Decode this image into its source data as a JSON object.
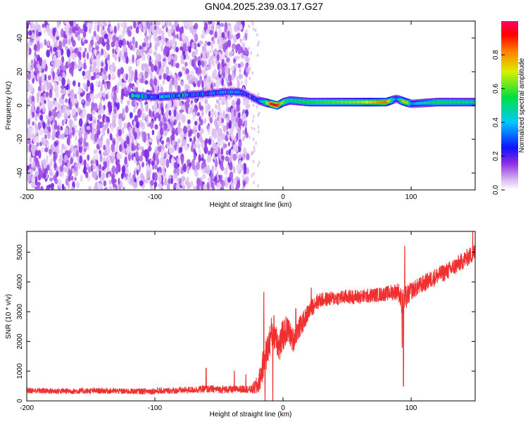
{
  "figure": {
    "title": "GN04.2025.239.03.17.G27"
  },
  "chart_data": [
    {
      "type": "heatmap",
      "title": "",
      "xlabel": "Height of straight line (km)",
      "ylabel": "Frequency (Hz)",
      "xlim": [
        -200,
        150
      ],
      "ylim": [
        -50,
        50
      ],
      "xticks": [
        -200,
        -100,
        0,
        100
      ],
      "yticks": [
        -40,
        -20,
        0,
        20,
        40
      ],
      "xtick_labels": [
        "-200",
        "-100",
        "0",
        "100"
      ],
      "ytick_labels": [
        "-40",
        "-20",
        "0",
        "20",
        "40"
      ],
      "colorbar": {
        "label": "Normalized spectral amplitude",
        "range": [
          0,
          1
        ],
        "ticks": [
          0.0,
          0.2,
          0.4,
          0.6,
          0.8
        ],
        "tick_labels": [
          "0.0",
          "0.2",
          "0.4",
          "0.6",
          "0.8"
        ],
        "colormap": [
          "#ffffff",
          "#d9b8f0",
          "#7a2be0",
          "#1010ff",
          "#00d0ff",
          "#00e040",
          "#f0f000",
          "#ff8000",
          "#ff0000"
        ]
      },
      "noise_region": {
        "x_start": -200,
        "x_end": -27,
        "sparse_until": -18
      },
      "line_band": {
        "x": [
          -120,
          -100,
          -80,
          -60,
          -45,
          -35,
          -30,
          -25,
          -20,
          -15,
          -10,
          -5,
          0,
          5,
          20,
          40,
          60,
          80,
          88,
          95,
          100,
          120,
          150
        ],
        "freq": [
          6,
          5,
          6,
          7,
          8,
          8,
          7,
          5,
          3,
          2,
          1,
          0,
          2,
          3,
          2,
          2,
          2,
          2,
          4,
          2,
          1,
          2,
          2
        ],
        "amplitude": [
          0.45,
          0.35,
          0.45,
          0.3,
          0.35,
          0.3,
          0.2,
          0.2,
          0.3,
          0.5,
          0.9,
          0.95,
          0.6,
          0.5,
          0.55,
          0.6,
          0.65,
          0.85,
          0.3,
          0.8,
          0.35,
          0.55,
          0.5
        ]
      }
    },
    {
      "type": "line",
      "title": "",
      "xlabel": "Height of straight line (km)",
      "ylabel": "SNR (10 * v/v)",
      "xlim": [
        -200,
        150
      ],
      "ylim": [
        0,
        5700
      ],
      "xticks": [
        -200,
        -100,
        0,
        100
      ],
      "yticks": [
        0,
        1000,
        2000,
        3000,
        4000,
        5000
      ],
      "xtick_labels": [
        "-200",
        "-100",
        "0",
        "100"
      ],
      "ytick_labels": [
        "0",
        "1000",
        "2000",
        "3000",
        "4000",
        "5000"
      ],
      "color": "#f03030",
      "series": [
        {
          "name": "SNR",
          "x": [
            -200,
            -180,
            -160,
            -140,
            -120,
            -100,
            -80,
            -60,
            -40,
            -30,
            -25,
            -20,
            -17,
            -15,
            -12,
            -10,
            -8,
            -5,
            -3,
            0,
            3,
            5,
            8,
            10,
            15,
            20,
            25,
            30,
            40,
            50,
            60,
            70,
            80,
            90,
            93,
            95,
            100,
            110,
            120,
            130,
            140,
            150
          ],
          "y": [
            350,
            330,
            330,
            340,
            320,
            330,
            350,
            400,
            380,
            400,
            380,
            500,
            900,
            1300,
            1700,
            2100,
            2400,
            2200,
            1800,
            2200,
            2400,
            2300,
            2000,
            2300,
            2600,
            3000,
            3300,
            3400,
            3450,
            3500,
            3500,
            3550,
            3600,
            3700,
            3300,
            3400,
            3700,
            3950,
            4200,
            4400,
            4700,
            5000
          ],
          "noise": [
            100,
            100,
            100,
            100,
            100,
            110,
            110,
            130,
            130,
            130,
            130,
            350,
            450,
            550,
            600,
            600,
            600,
            600,
            600,
            550,
            500,
            450,
            400,
            400,
            350,
            300,
            300,
            250,
            250,
            250,
            250,
            250,
            250,
            300,
            450,
            450,
            300,
            300,
            300,
            300,
            300,
            300
          ],
          "spikes": [
            {
              "x": -60,
              "y": 1100
            },
            {
              "x": -38,
              "y": 1000
            },
            {
              "x": -29,
              "y": 880
            },
            {
              "x": -15,
              "y": 3650
            },
            {
              "x": -8,
              "y": 4300
            },
            {
              "x": 10,
              "y": 3100
            },
            {
              "x": 22,
              "y": 3800
            },
            {
              "x": 95,
              "y": 5200
            },
            {
              "x": 94,
              "y": 500
            },
            {
              "x": 148,
              "y": 5700
            }
          ],
          "dips": [
            {
              "x": -8,
              "y": 0
            },
            {
              "x": -14,
              "y": 0
            },
            {
              "x": 93,
              "y": 1800
            }
          ]
        }
      ]
    }
  ]
}
